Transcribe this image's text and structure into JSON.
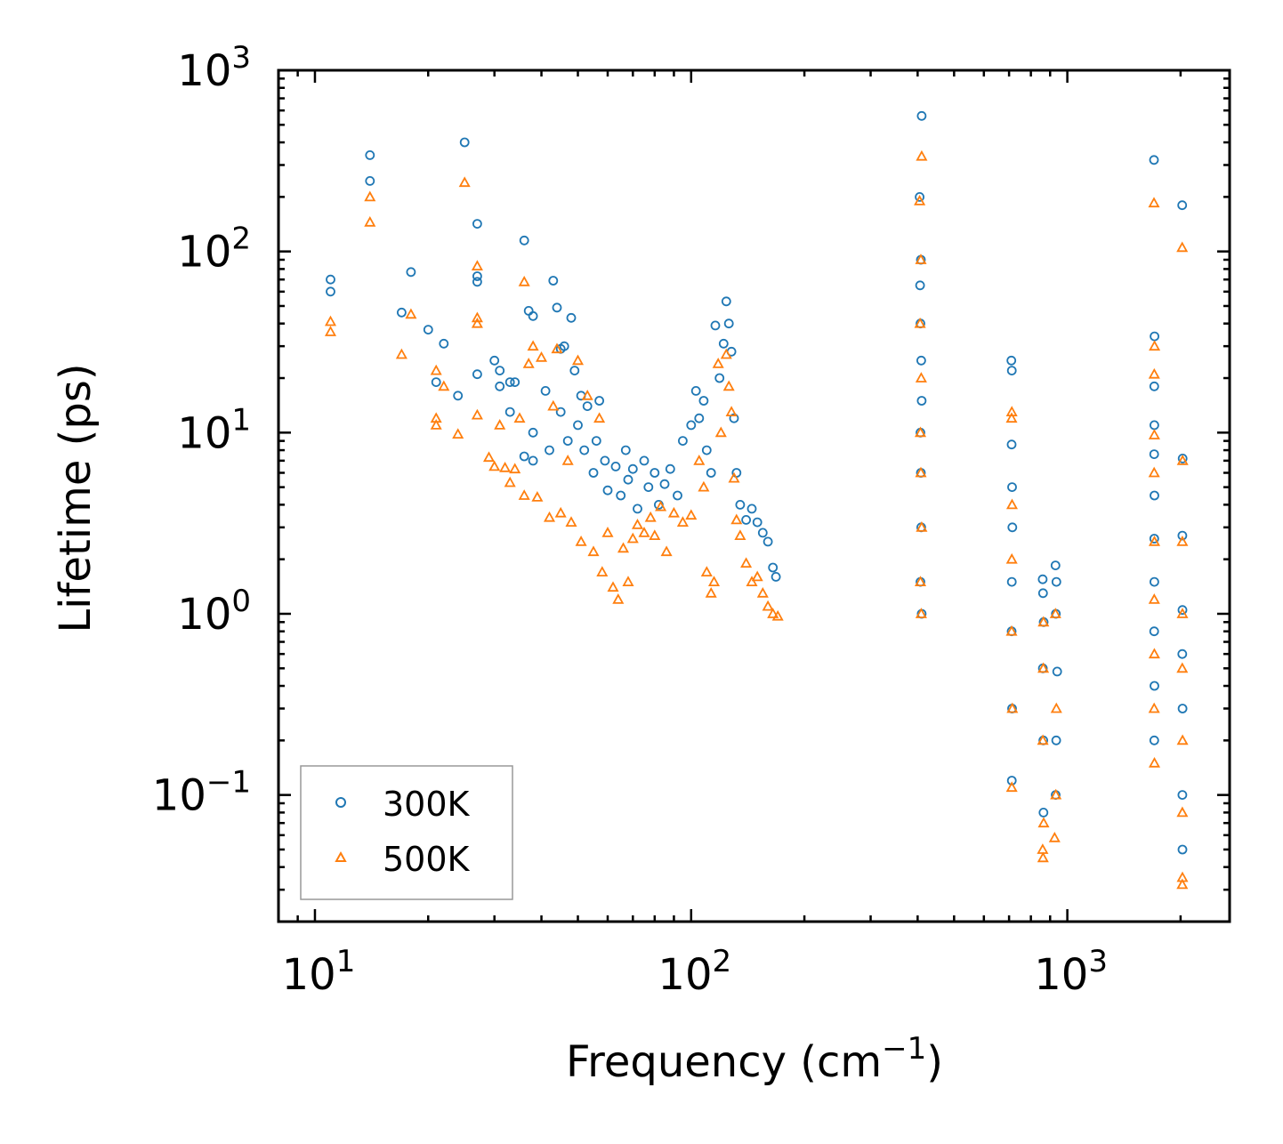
{
  "chart_data": {
    "type": "scatter",
    "xscale": "log",
    "yscale": "log",
    "xlim": [
      8,
      2700
    ],
    "ylim": [
      0.02,
      1000
    ],
    "xlabel": {
      "main": "Frequency (cm",
      "exp": "−1",
      "close": ")"
    },
    "ylabel": "Lifetime (ps)",
    "xticks": [
      {
        "base": "10",
        "exp": "1",
        "value": 10
      },
      {
        "base": "10",
        "exp": "2",
        "value": 100
      },
      {
        "base": "10",
        "exp": "3",
        "value": 1000
      }
    ],
    "yticks": [
      {
        "base": "10",
        "exp": "−1",
        "value": 0.1
      },
      {
        "base": "10",
        "exp": "0",
        "value": 1
      },
      {
        "base": "10",
        "exp": "1",
        "value": 10
      },
      {
        "base": "10",
        "exp": "2",
        "value": 100
      },
      {
        "base": "10",
        "exp": "3",
        "value": 1000
      }
    ],
    "legend_position": "lower-left",
    "series": [
      {
        "name": "300K",
        "marker": "circle",
        "color": "#1f77b4",
        "points": [
          [
            11,
            70
          ],
          [
            11,
            60
          ],
          [
            14,
            340
          ],
          [
            14,
            245
          ],
          [
            18,
            77
          ],
          [
            17,
            46
          ],
          [
            20,
            37
          ],
          [
            21,
            19
          ],
          [
            22,
            31
          ],
          [
            24,
            16
          ],
          [
            25,
            400
          ],
          [
            27,
            142
          ],
          [
            27,
            73
          ],
          [
            27,
            68
          ],
          [
            27,
            21
          ],
          [
            30,
            25
          ],
          [
            31,
            22
          ],
          [
            31,
            18
          ],
          [
            33,
            13
          ],
          [
            33,
            19
          ],
          [
            34,
            19
          ],
          [
            36,
            115
          ],
          [
            36,
            7.4
          ],
          [
            37,
            47
          ],
          [
            38,
            44
          ],
          [
            38,
            10
          ],
          [
            38,
            7
          ],
          [
            41,
            17
          ],
          [
            42,
            8
          ],
          [
            43,
            69
          ],
          [
            44,
            49
          ],
          [
            45,
            29
          ],
          [
            45,
            13
          ],
          [
            46,
            30
          ],
          [
            47,
            9
          ],
          [
            48,
            43
          ],
          [
            49,
            22
          ],
          [
            50,
            11
          ],
          [
            51,
            16
          ],
          [
            52,
            8
          ],
          [
            53,
            14
          ],
          [
            55,
            6
          ],
          [
            56,
            9
          ],
          [
            57,
            15
          ],
          [
            59,
            7
          ],
          [
            60,
            4.8
          ],
          [
            63,
            6.5
          ],
          [
            65,
            4.5
          ],
          [
            67,
            8
          ],
          [
            68,
            5.5
          ],
          [
            70,
            6.3
          ],
          [
            72,
            3.8
          ],
          [
            75,
            7
          ],
          [
            77,
            5
          ],
          [
            80,
            6
          ],
          [
            82,
            4
          ],
          [
            85,
            5.2
          ],
          [
            88,
            6.3
          ],
          [
            92,
            4.5
          ],
          [
            95,
            9
          ],
          [
            100,
            11
          ],
          [
            103,
            17
          ],
          [
            105,
            12
          ],
          [
            108,
            15
          ],
          [
            110,
            8
          ],
          [
            113,
            6
          ],
          [
            116,
            39
          ],
          [
            119,
            20
          ],
          [
            122,
            31
          ],
          [
            124,
            53
          ],
          [
            126,
            40
          ],
          [
            128,
            28
          ],
          [
            130,
            12
          ],
          [
            132,
            6
          ],
          [
            135,
            4
          ],
          [
            140,
            3.3
          ],
          [
            145,
            3.8
          ],
          [
            150,
            3.2
          ],
          [
            155,
            2.8
          ],
          [
            160,
            2.5
          ],
          [
            165,
            1.8
          ],
          [
            168,
            1.6
          ],
          [
            410,
            560
          ],
          [
            405,
            200
          ],
          [
            408,
            90
          ],
          [
            406,
            65
          ],
          [
            407,
            40
          ],
          [
            409,
            25
          ],
          [
            410,
            15
          ],
          [
            407,
            10
          ],
          [
            408,
            6
          ],
          [
            409,
            3
          ],
          [
            407,
            1.5
          ],
          [
            410,
            1.0
          ],
          [
            710,
            25
          ],
          [
            712,
            22
          ],
          [
            711,
            8.6
          ],
          [
            713,
            5
          ],
          [
            714,
            3
          ],
          [
            712,
            1.5
          ],
          [
            711,
            0.8
          ],
          [
            713,
            0.3
          ],
          [
            712,
            0.12
          ],
          [
            860,
            1.55
          ],
          [
            862,
            1.3
          ],
          [
            865,
            0.9
          ],
          [
            861,
            0.5
          ],
          [
            863,
            0.2
          ],
          [
            864,
            0.08
          ],
          [
            930,
            1.85
          ],
          [
            935,
            1.5
          ],
          [
            932,
            1.0
          ],
          [
            940,
            0.48
          ],
          [
            934,
            0.2
          ],
          [
            931,
            0.1
          ],
          [
            1700,
            320
          ],
          [
            1705,
            34
          ],
          [
            1702,
            18
          ],
          [
            1703,
            11
          ],
          [
            1701,
            7.6
          ],
          [
            1704,
            4.5
          ],
          [
            1702,
            2.6
          ],
          [
            1703,
            1.5
          ],
          [
            1701,
            0.8
          ],
          [
            1704,
            0.4
          ],
          [
            1702,
            0.2
          ],
          [
            2020,
            180
          ],
          [
            2025,
            7.2
          ],
          [
            2022,
            2.7
          ],
          [
            2023,
            1.05
          ],
          [
            2021,
            0.6
          ],
          [
            2024,
            0.3
          ],
          [
            2022,
            0.1
          ],
          [
            2023,
            0.05
          ]
        ]
      },
      {
        "name": "500K",
        "marker": "triangle",
        "color": "#ff7f0e",
        "points": [
          [
            11,
            41
          ],
          [
            11,
            36
          ],
          [
            14,
            200
          ],
          [
            14,
            145
          ],
          [
            17,
            27
          ],
          [
            18,
            45
          ],
          [
            21,
            22
          ],
          [
            21,
            12
          ],
          [
            21,
            11
          ],
          [
            22,
            18
          ],
          [
            24,
            9.8
          ],
          [
            25,
            240
          ],
          [
            27,
            83
          ],
          [
            27,
            43
          ],
          [
            27,
            40
          ],
          [
            27,
            12.5
          ],
          [
            29,
            7.3
          ],
          [
            30,
            6.5
          ],
          [
            31,
            11
          ],
          [
            32,
            6.4
          ],
          [
            33,
            5.3
          ],
          [
            34,
            6.3
          ],
          [
            35,
            12
          ],
          [
            36,
            68
          ],
          [
            36,
            4.5
          ],
          [
            37,
            24
          ],
          [
            38,
            30
          ],
          [
            39,
            4.4
          ],
          [
            40,
            26
          ],
          [
            42,
            3.4
          ],
          [
            43,
            14
          ],
          [
            44,
            29
          ],
          [
            45,
            3.6
          ],
          [
            47,
            7
          ],
          [
            48,
            3.2
          ],
          [
            50,
            25
          ],
          [
            51,
            2.5
          ],
          [
            53,
            16
          ],
          [
            55,
            2.2
          ],
          [
            57,
            12
          ],
          [
            58,
            1.7
          ],
          [
            60,
            2.8
          ],
          [
            62,
            1.4
          ],
          [
            64,
            1.2
          ],
          [
            66,
            2.3
          ],
          [
            68,
            1.5
          ],
          [
            70,
            2.6
          ],
          [
            72,
            3.1
          ],
          [
            75,
            2.8
          ],
          [
            78,
            3.4
          ],
          [
            80,
            2.7
          ],
          [
            83,
            3.9
          ],
          [
            86,
            2.2
          ],
          [
            90,
            3.6
          ],
          [
            95,
            3.2
          ],
          [
            100,
            3.5
          ],
          [
            105,
            7
          ],
          [
            108,
            5
          ],
          [
            110,
            1.7
          ],
          [
            113,
            1.3
          ],
          [
            115,
            1.5
          ],
          [
            118,
            24
          ],
          [
            120,
            10
          ],
          [
            124,
            27
          ],
          [
            126,
            18
          ],
          [
            128,
            13
          ],
          [
            130,
            5.6
          ],
          [
            132,
            3.3
          ],
          [
            135,
            2.7
          ],
          [
            140,
            1.9
          ],
          [
            145,
            1.5
          ],
          [
            150,
            1.6
          ],
          [
            155,
            1.3
          ],
          [
            160,
            1.1
          ],
          [
            165,
            1.0
          ],
          [
            170,
            0.97
          ],
          [
            410,
            335
          ],
          [
            405,
            190
          ],
          [
            408,
            90
          ],
          [
            406,
            40
          ],
          [
            409,
            20
          ],
          [
            407,
            10
          ],
          [
            408,
            6
          ],
          [
            410,
            3
          ],
          [
            407,
            1.5
          ],
          [
            409,
            1.0
          ],
          [
            712,
            13
          ],
          [
            711,
            12
          ],
          [
            713,
            4
          ],
          [
            712,
            2
          ],
          [
            711,
            0.8
          ],
          [
            714,
            0.3
          ],
          [
            712,
            0.11
          ],
          [
            860,
            0.05
          ],
          [
            862,
            0.045
          ],
          [
            865,
            0.07
          ],
          [
            861,
            0.2
          ],
          [
            863,
            0.5
          ],
          [
            864,
            0.9
          ],
          [
            925,
            0.058
          ],
          [
            930,
            1.0
          ],
          [
            935,
            0.3
          ],
          [
            932,
            0.1
          ],
          [
            1700,
            185
          ],
          [
            1705,
            30
          ],
          [
            1702,
            21
          ],
          [
            1703,
            9.7
          ],
          [
            1701,
            6
          ],
          [
            1704,
            2.5
          ],
          [
            1702,
            1.2
          ],
          [
            1703,
            0.6
          ],
          [
            1701,
            0.3
          ],
          [
            1704,
            0.15
          ],
          [
            2020,
            105
          ],
          [
            2025,
            7
          ],
          [
            2022,
            2.5
          ],
          [
            2023,
            1.0
          ],
          [
            2021,
            0.5
          ],
          [
            2024,
            0.2
          ],
          [
            2022,
            0.08
          ],
          [
            2023,
            0.035
          ],
          [
            2021,
            0.032
          ]
        ]
      }
    ]
  }
}
